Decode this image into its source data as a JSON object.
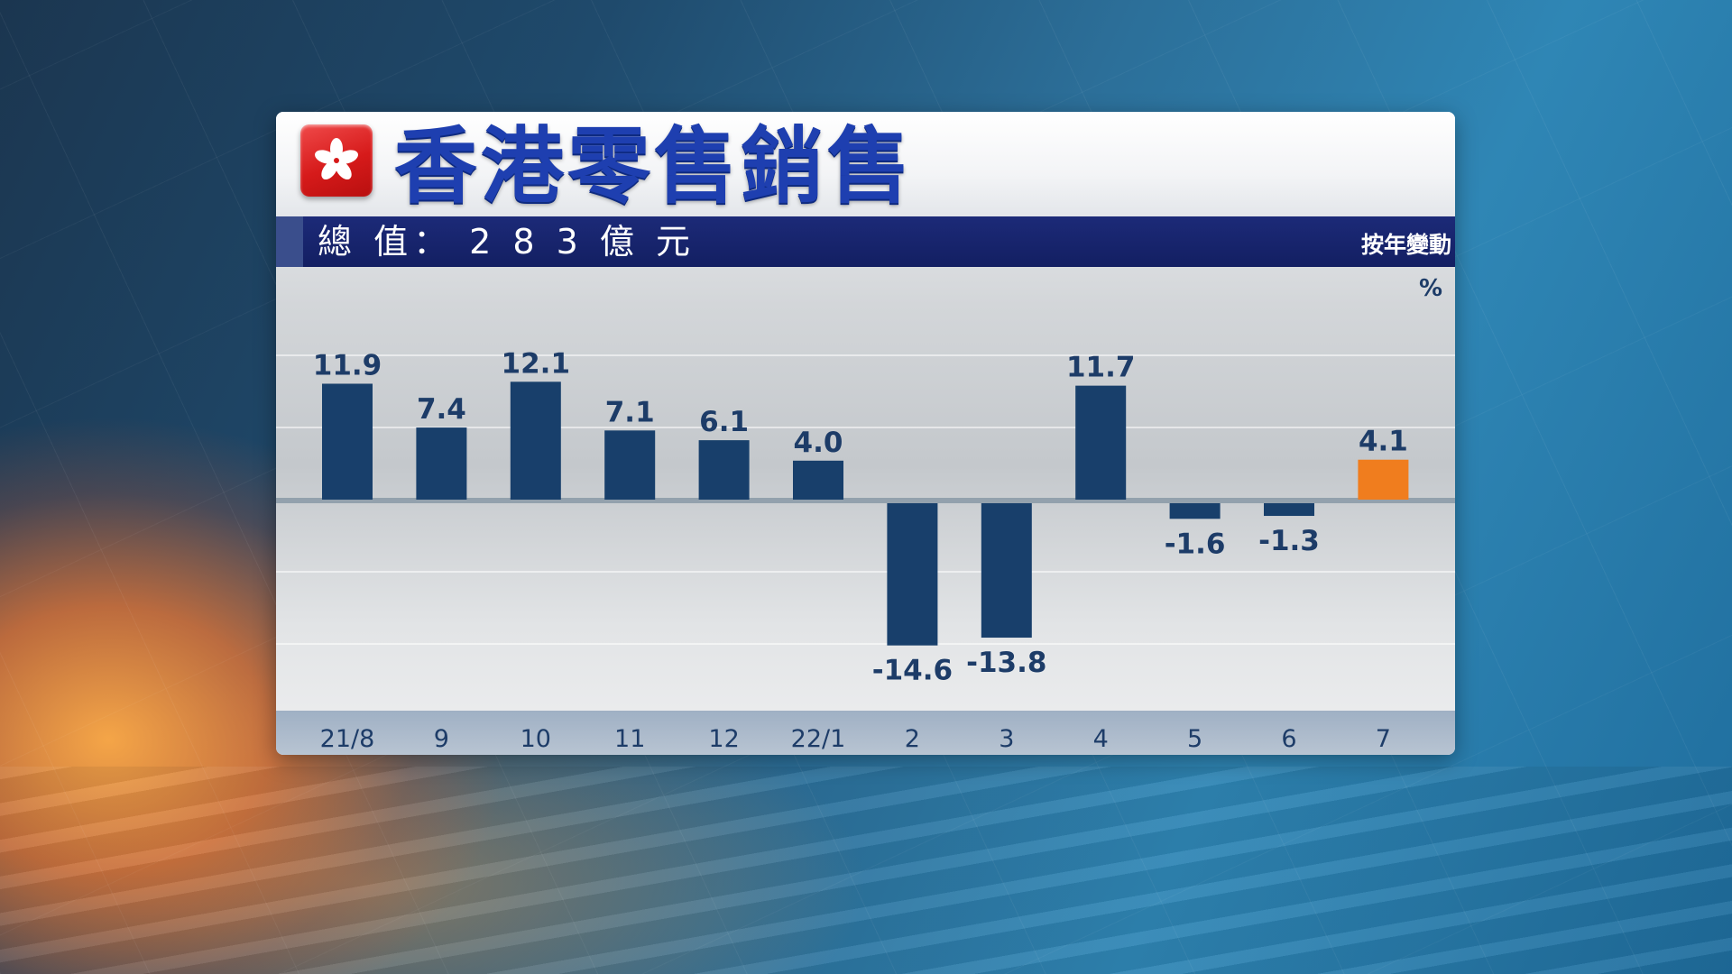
{
  "header": {
    "title": "香港零售銷售",
    "total_label": "總 值：  2 8 3 億 元",
    "yoy_label": "按年變動",
    "unit_label": "%"
  },
  "chart_data": {
    "type": "bar",
    "title": "香港零售銷售",
    "xlabel": "",
    "ylabel": "%",
    "categories": [
      "21/8",
      "9",
      "10",
      "11",
      "12",
      "22/1",
      "2",
      "3",
      "4",
      "5",
      "6",
      "7"
    ],
    "values": [
      11.9,
      7.4,
      12.1,
      7.1,
      6.1,
      4.0,
      -14.6,
      -13.8,
      11.7,
      -1.6,
      -1.3,
      4.1
    ],
    "value_labels": [
      "11.9",
      "7.4",
      "12.1",
      "7.1",
      "6.1",
      "4.0",
      "-14.6",
      "-13.8",
      "11.7",
      "-1.6",
      "-1.3",
      "4.1"
    ],
    "ylim": [
      -20,
      20
    ],
    "grid": true,
    "colors": {
      "bar": "#183f6b",
      "highlight": "#f07d1e",
      "label": "#1d3c68"
    },
    "highlight_index": 11
  }
}
